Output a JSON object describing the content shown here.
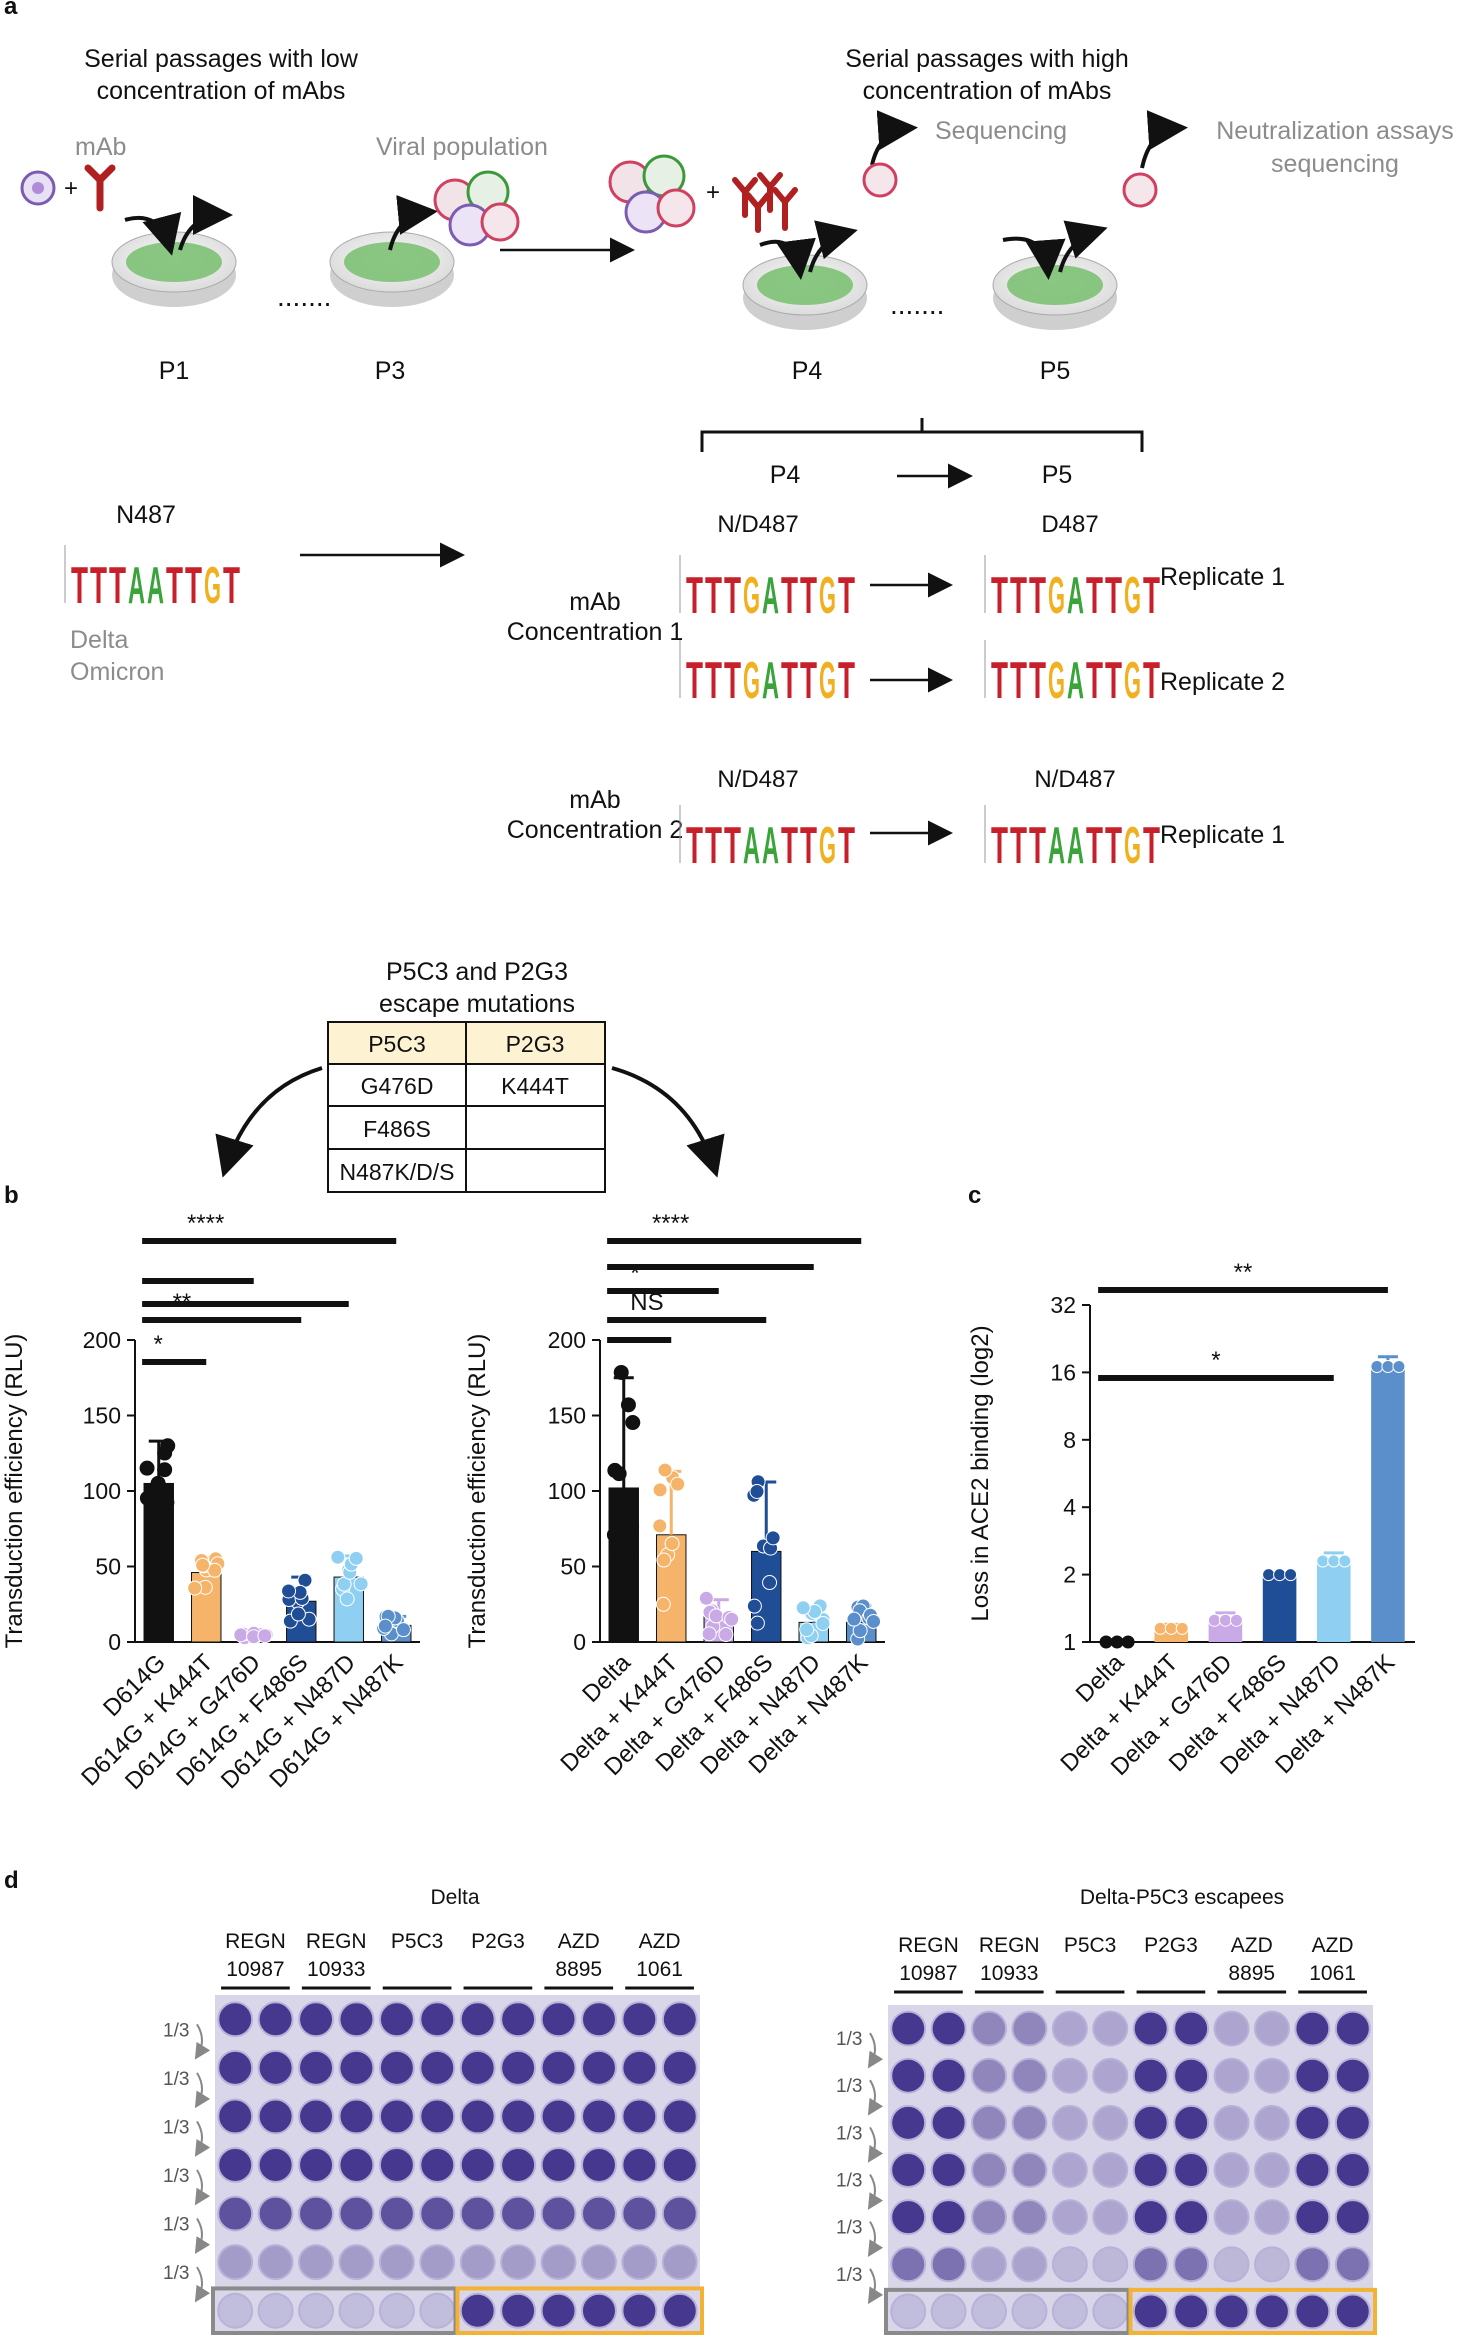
{
  "panel_a": {
    "label": "a",
    "low_title_1": "Serial passages with low",
    "low_title_2": "concentration of mAbs",
    "high_title_1": "Serial passages with high",
    "high_title_2": "concentration of mAbs",
    "mab_label": "mAb",
    "viral_population": "Viral population",
    "sequencing": "Sequencing",
    "neutralization_1": "Neutralization assays",
    "neutralization_2": "sequencing",
    "plus": "+",
    "dots": ".......",
    "passages": [
      "P1",
      "P3",
      "P4",
      "P5"
    ],
    "p4_header": "P4",
    "p5_header": "P5",
    "start_residue": "N487",
    "variant_delta": "Delta",
    "variant_omicron": "Omicron",
    "conc1_line1": "mAb",
    "conc1_line2": "Concentration 1",
    "conc2_line1": "mAb",
    "conc2_line2": "Concentration 2",
    "logo_labels": {
      "c1_p4": "N/D487",
      "c1_p5": "D487",
      "c2_p4": "N/D487",
      "c2_p5": "N/D487"
    },
    "replicates": [
      "Replicate 1",
      "Replicate 2",
      "Replicate 1"
    ]
  },
  "escape_table": {
    "title_1": "P5C3 and P2G3",
    "title_2": "escape mutations",
    "headers": [
      "P5C3",
      "P2G3"
    ],
    "rows": [
      [
        "G476D",
        "K444T"
      ],
      [
        "F486S",
        ""
      ],
      [
        "N487K/D/S",
        ""
      ]
    ],
    "header_bg": "#fdf3d3"
  },
  "chart_data": [
    {
      "id": "b-left",
      "type": "bar",
      "panel": "b",
      "ylabel": "Transduction efficiency (RLU)",
      "ylim": [
        0,
        200
      ],
      "yticks": [
        0,
        50,
        100,
        150,
        200
      ],
      "categories": [
        "D614G",
        "D614G + K444T",
        "D614G + G476D",
        "D614G + F486S",
        "D614G + N487D",
        "D614G + N487K"
      ],
      "values": [
        105,
        46,
        4,
        27,
        43,
        11
      ],
      "errors": [
        28,
        10,
        2,
        16,
        14,
        6
      ],
      "colors": [
        "#111111",
        "#f5b46a",
        "#c9a9e6",
        "#1f4e96",
        "#8fd0f2",
        "#5b8fcc"
      ],
      "significance": [
        {
          "label": "*",
          "from": 0,
          "to": 1
        },
        {
          "label": "**",
          "from": 0,
          "to": 3
        },
        {
          "label": "",
          "from": 0,
          "to": 4
        },
        {
          "label": "",
          "from": 0,
          "to": 2
        },
        {
          "label": "****",
          "from": 0,
          "to": 5
        }
      ]
    },
    {
      "id": "b-right",
      "type": "bar",
      "panel": "b",
      "ylabel": "Transduction efficiency (RLU)",
      "ylim": [
        0,
        200
      ],
      "yticks": [
        0,
        50,
        100,
        150,
        200
      ],
      "categories": [
        "Delta",
        "Delta + K444T",
        "Delta + G476D",
        "Delta + F486S",
        "Delta + N487D",
        "Delta + N487K"
      ],
      "values": [
        102,
        71,
        17,
        60,
        13,
        13
      ],
      "errors": [
        73,
        42,
        11,
        46,
        10,
        11
      ],
      "colors": [
        "#111111",
        "#f5b46a",
        "#c9a9e6",
        "#1f4e96",
        "#8fd0f2",
        "#5b8fcc"
      ],
      "significance": [
        {
          "label": "",
          "from": 0,
          "to": 1
        },
        {
          "label": "NS",
          "from": 0,
          "to": 3
        },
        {
          "label": "*",
          "from": 0,
          "to": 2
        },
        {
          "label": "",
          "from": 0,
          "to": 4
        },
        {
          "label": "****",
          "from": 0,
          "to": 5
        }
      ]
    },
    {
      "id": "c",
      "type": "bar",
      "panel": "c",
      "ylabel": "Loss in ACE2 binding (log2)",
      "yscale": "log2",
      "ylim": [
        1,
        32
      ],
      "yticks": [
        1,
        2,
        4,
        8,
        16,
        32
      ],
      "categories": [
        "Delta",
        "Delta + K444T",
        "Delta + G476D",
        "Delta + F486S",
        "Delta + N487D",
        "Delta + N487K"
      ],
      "values": [
        1,
        1.15,
        1.25,
        2,
        2.3,
        17
      ],
      "errors": [
        0,
        0.05,
        0.1,
        0,
        0.2,
        1.8
      ],
      "colors": [
        "#111111",
        "#f5b46a",
        "#c9a9e6",
        "#1f4e96",
        "#8fd0f2",
        "#5b8fcc"
      ],
      "significance": [
        {
          "label": "*",
          "from": 0,
          "to": 4
        },
        {
          "label": "**",
          "from": 0,
          "to": 5
        }
      ]
    }
  ],
  "panel_d": {
    "label": "d",
    "plates": [
      {
        "title": "Delta",
        "mabs": [
          [
            "REGN",
            "10987"
          ],
          [
            "REGN",
            "10933"
          ],
          [
            "P5C3"
          ],
          [
            "P2G3"
          ],
          [
            "AZD",
            "8895"
          ],
          [
            "AZD",
            "1061"
          ]
        ]
      },
      {
        "title": "Delta-P5C3 escapees",
        "mabs": [
          [
            "REGN",
            "10987"
          ],
          [
            "REGN",
            "10933"
          ],
          [
            "P5C3"
          ],
          [
            "P2G3"
          ],
          [
            "AZD",
            "8895"
          ],
          [
            "AZD",
            "1061"
          ]
        ]
      }
    ],
    "dilution": "1/3",
    "box_gray": "#8a8a8a",
    "box_orange": "#f2b233"
  },
  "panel_labels": {
    "b": "b",
    "c": "c"
  },
  "colors": {
    "petri_green": "#6fb86a",
    "antibody_red": "#b02020",
    "dna_red": "#c8202a",
    "dna_green": "#3aa43a",
    "dna_yellow": "#f0b020",
    "plate_bg": "#d8d4ea",
    "well_dark": "#3f2f8a"
  }
}
